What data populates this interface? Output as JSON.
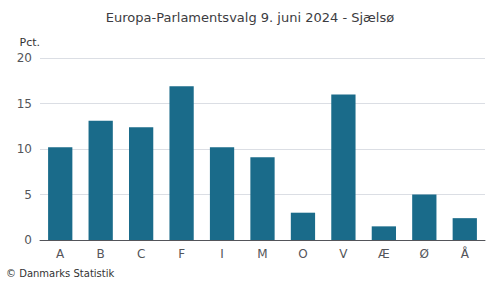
{
  "chart_data": {
    "type": "bar",
    "title": "Europa-Parlamentsvalg 9. juni 2024 - Sjælsø",
    "categories": [
      "A",
      "B",
      "C",
      "F",
      "I",
      "M",
      "O",
      "V",
      "Æ",
      "Ø",
      "Å"
    ],
    "values": [
      10.2,
      13.1,
      12.4,
      16.9,
      10.2,
      9.1,
      3.0,
      16.0,
      1.5,
      5.0,
      2.4
    ],
    "color": "#1a6b8a",
    "ylabel": "Pct.",
    "annotations": [
      "© Danmarks Statistik"
    ],
    "ylim": [
      0,
      20
    ],
    "yticks": [
      0,
      5,
      10,
      15,
      20
    ],
    "grid": true
  }
}
